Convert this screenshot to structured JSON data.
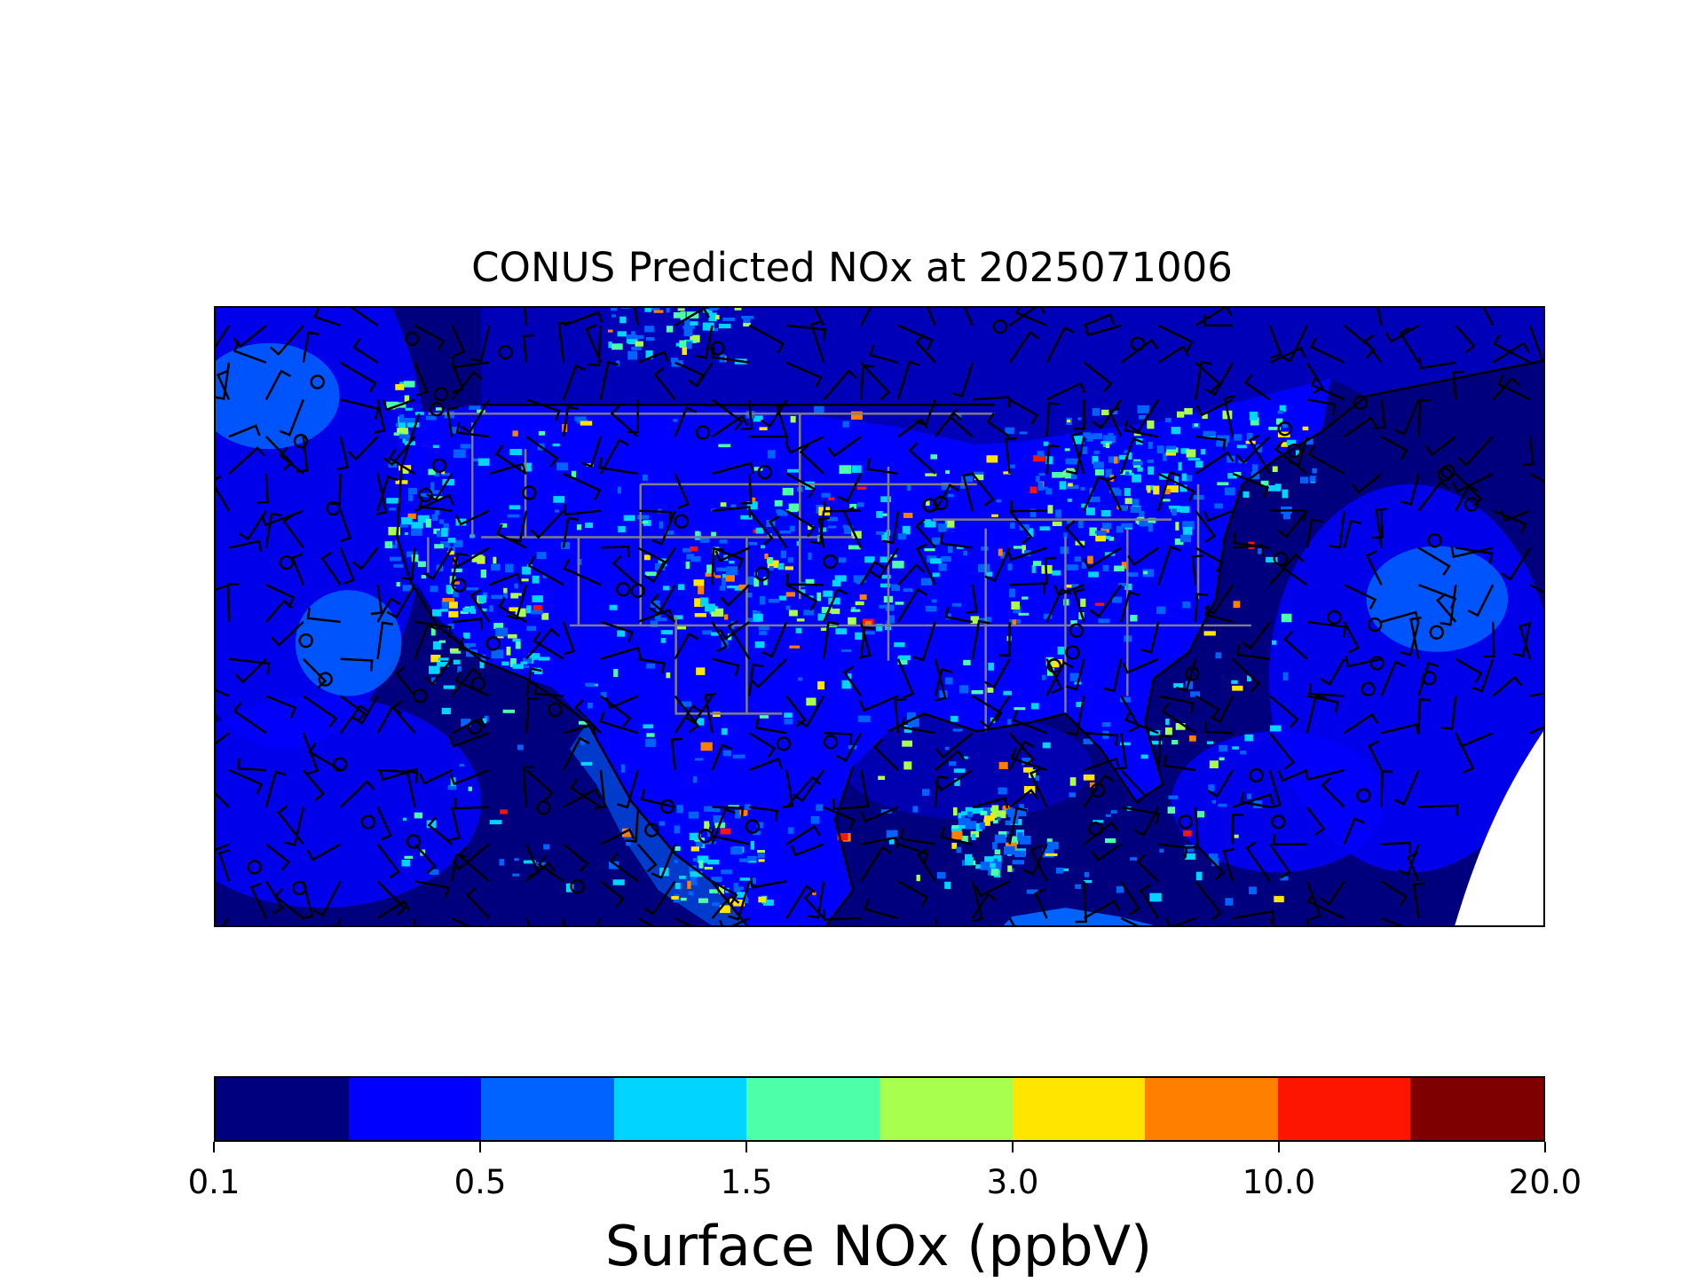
{
  "title": "CONUS Predicted NOx at 2025071006",
  "colorbar": {
    "label": "Surface NOx (ppbV)",
    "tick_labels": [
      "0.1",
      "0.5",
      "1.5",
      "3.0",
      "10.0",
      "20.0"
    ],
    "colors": [
      "#00007f",
      "#0000fe",
      "#0063ff",
      "#00d4ff",
      "#4effa9",
      "#a9ff4e",
      "#ffe500",
      "#ff7f00",
      "#fe1500",
      "#7f0000"
    ]
  },
  "map": {
    "background_color": "#00007f",
    "border_color": "#808080",
    "coast_color": "#000000"
  }
}
